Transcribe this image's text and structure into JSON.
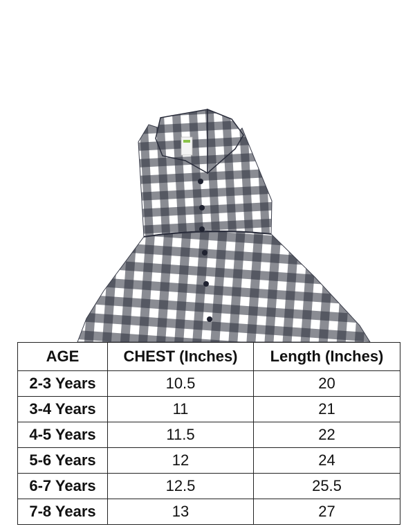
{
  "product_image": {
    "subject": "gingham-dress-icon",
    "check_color": "#2a2d3b",
    "fabric_color": "#ffffff"
  },
  "size_chart": {
    "headers": [
      "AGE",
      "CHEST (Inches)",
      "Length (Inches)"
    ],
    "rows": [
      [
        "2-3 Years",
        "10.5",
        "20"
      ],
      [
        "3-4 Years",
        "11",
        "21"
      ],
      [
        "4-5 Years",
        "11.5",
        "22"
      ],
      [
        "5-6 Years",
        "12",
        "24"
      ],
      [
        "6-7 Years",
        "12.5",
        "25.5"
      ],
      [
        "7-8 Years",
        "13",
        "27"
      ]
    ]
  }
}
